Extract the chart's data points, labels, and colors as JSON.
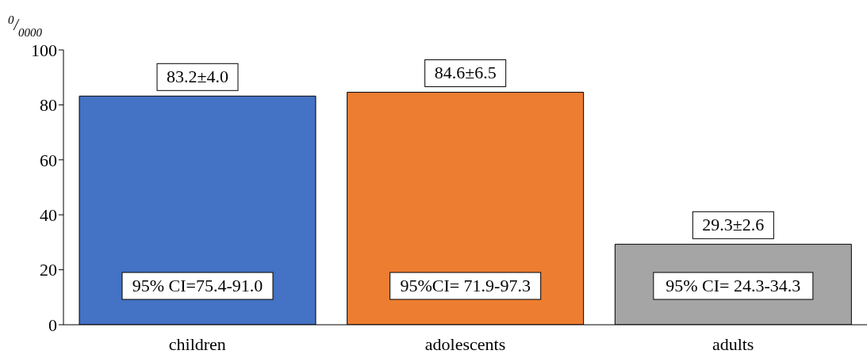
{
  "chart_data": {
    "type": "bar",
    "ylabel": "$^{0}$/$_{0000}$",
    "categories": [
      "children",
      "adolescents",
      "adults"
    ],
    "values": [
      83.2,
      84.6,
      29.3
    ],
    "colors": [
      "#4472c4",
      "#ed7d31",
      "#a5a5a5"
    ],
    "value_labels": [
      "83.2±4.0",
      "84.6±6.5",
      "29.3±2.6"
    ],
    "annotations": [
      "95% CI=75.4-91.0",
      "95%CI= 71.9-97.3",
      "95% CI= 24.3-34.3"
    ],
    "ylim": [
      0,
      100
    ],
    "yticks": [
      0,
      20,
      40,
      60,
      80,
      100
    ],
    "grid": false,
    "legend": false
  }
}
